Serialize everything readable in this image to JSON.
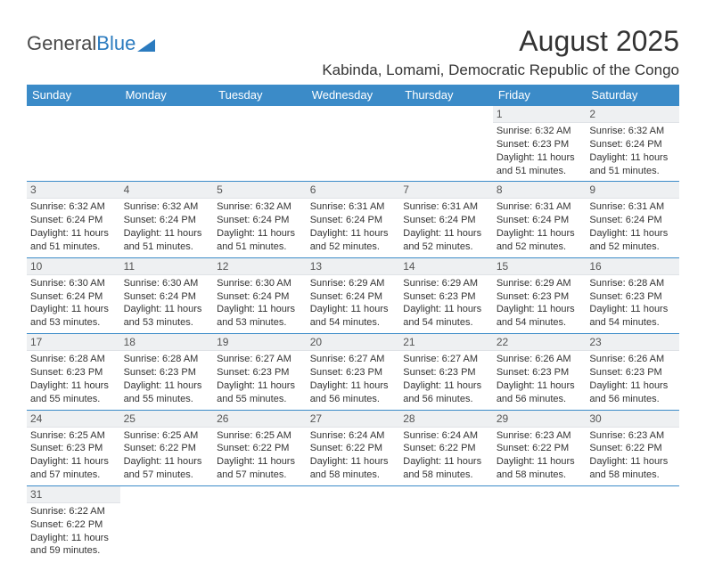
{
  "logo": {
    "part1": "General",
    "part2": "Blue"
  },
  "title": "August 2025",
  "location": "Kabinda, Lomami, Democratic Republic of the Congo",
  "header_bg": "#3b8bc8",
  "weekdays": [
    "Sunday",
    "Monday",
    "Tuesday",
    "Wednesday",
    "Thursday",
    "Friday",
    "Saturday"
  ],
  "rows": [
    [
      null,
      null,
      null,
      null,
      null,
      {
        "n": "1",
        "rise": "Sunrise: 6:32 AM",
        "set": "Sunset: 6:23 PM",
        "d1": "Daylight: 11 hours",
        "d2": "and 51 minutes."
      },
      {
        "n": "2",
        "rise": "Sunrise: 6:32 AM",
        "set": "Sunset: 6:24 PM",
        "d1": "Daylight: 11 hours",
        "d2": "and 51 minutes."
      }
    ],
    [
      {
        "n": "3",
        "rise": "Sunrise: 6:32 AM",
        "set": "Sunset: 6:24 PM",
        "d1": "Daylight: 11 hours",
        "d2": "and 51 minutes."
      },
      {
        "n": "4",
        "rise": "Sunrise: 6:32 AM",
        "set": "Sunset: 6:24 PM",
        "d1": "Daylight: 11 hours",
        "d2": "and 51 minutes."
      },
      {
        "n": "5",
        "rise": "Sunrise: 6:32 AM",
        "set": "Sunset: 6:24 PM",
        "d1": "Daylight: 11 hours",
        "d2": "and 51 minutes."
      },
      {
        "n": "6",
        "rise": "Sunrise: 6:31 AM",
        "set": "Sunset: 6:24 PM",
        "d1": "Daylight: 11 hours",
        "d2": "and 52 minutes."
      },
      {
        "n": "7",
        "rise": "Sunrise: 6:31 AM",
        "set": "Sunset: 6:24 PM",
        "d1": "Daylight: 11 hours",
        "d2": "and 52 minutes."
      },
      {
        "n": "8",
        "rise": "Sunrise: 6:31 AM",
        "set": "Sunset: 6:24 PM",
        "d1": "Daylight: 11 hours",
        "d2": "and 52 minutes."
      },
      {
        "n": "9",
        "rise": "Sunrise: 6:31 AM",
        "set": "Sunset: 6:24 PM",
        "d1": "Daylight: 11 hours",
        "d2": "and 52 minutes."
      }
    ],
    [
      {
        "n": "10",
        "rise": "Sunrise: 6:30 AM",
        "set": "Sunset: 6:24 PM",
        "d1": "Daylight: 11 hours",
        "d2": "and 53 minutes."
      },
      {
        "n": "11",
        "rise": "Sunrise: 6:30 AM",
        "set": "Sunset: 6:24 PM",
        "d1": "Daylight: 11 hours",
        "d2": "and 53 minutes."
      },
      {
        "n": "12",
        "rise": "Sunrise: 6:30 AM",
        "set": "Sunset: 6:24 PM",
        "d1": "Daylight: 11 hours",
        "d2": "and 53 minutes."
      },
      {
        "n": "13",
        "rise": "Sunrise: 6:29 AM",
        "set": "Sunset: 6:24 PM",
        "d1": "Daylight: 11 hours",
        "d2": "and 54 minutes."
      },
      {
        "n": "14",
        "rise": "Sunrise: 6:29 AM",
        "set": "Sunset: 6:23 PM",
        "d1": "Daylight: 11 hours",
        "d2": "and 54 minutes."
      },
      {
        "n": "15",
        "rise": "Sunrise: 6:29 AM",
        "set": "Sunset: 6:23 PM",
        "d1": "Daylight: 11 hours",
        "d2": "and 54 minutes."
      },
      {
        "n": "16",
        "rise": "Sunrise: 6:28 AM",
        "set": "Sunset: 6:23 PM",
        "d1": "Daylight: 11 hours",
        "d2": "and 54 minutes."
      }
    ],
    [
      {
        "n": "17",
        "rise": "Sunrise: 6:28 AM",
        "set": "Sunset: 6:23 PM",
        "d1": "Daylight: 11 hours",
        "d2": "and 55 minutes."
      },
      {
        "n": "18",
        "rise": "Sunrise: 6:28 AM",
        "set": "Sunset: 6:23 PM",
        "d1": "Daylight: 11 hours",
        "d2": "and 55 minutes."
      },
      {
        "n": "19",
        "rise": "Sunrise: 6:27 AM",
        "set": "Sunset: 6:23 PM",
        "d1": "Daylight: 11 hours",
        "d2": "and 55 minutes."
      },
      {
        "n": "20",
        "rise": "Sunrise: 6:27 AM",
        "set": "Sunset: 6:23 PM",
        "d1": "Daylight: 11 hours",
        "d2": "and 56 minutes."
      },
      {
        "n": "21",
        "rise": "Sunrise: 6:27 AM",
        "set": "Sunset: 6:23 PM",
        "d1": "Daylight: 11 hours",
        "d2": "and 56 minutes."
      },
      {
        "n": "22",
        "rise": "Sunrise: 6:26 AM",
        "set": "Sunset: 6:23 PM",
        "d1": "Daylight: 11 hours",
        "d2": "and 56 minutes."
      },
      {
        "n": "23",
        "rise": "Sunrise: 6:26 AM",
        "set": "Sunset: 6:23 PM",
        "d1": "Daylight: 11 hours",
        "d2": "and 56 minutes."
      }
    ],
    [
      {
        "n": "24",
        "rise": "Sunrise: 6:25 AM",
        "set": "Sunset: 6:23 PM",
        "d1": "Daylight: 11 hours",
        "d2": "and 57 minutes."
      },
      {
        "n": "25",
        "rise": "Sunrise: 6:25 AM",
        "set": "Sunset: 6:22 PM",
        "d1": "Daylight: 11 hours",
        "d2": "and 57 minutes."
      },
      {
        "n": "26",
        "rise": "Sunrise: 6:25 AM",
        "set": "Sunset: 6:22 PM",
        "d1": "Daylight: 11 hours",
        "d2": "and 57 minutes."
      },
      {
        "n": "27",
        "rise": "Sunrise: 6:24 AM",
        "set": "Sunset: 6:22 PM",
        "d1": "Daylight: 11 hours",
        "d2": "and 58 minutes."
      },
      {
        "n": "28",
        "rise": "Sunrise: 6:24 AM",
        "set": "Sunset: 6:22 PM",
        "d1": "Daylight: 11 hours",
        "d2": "and 58 minutes."
      },
      {
        "n": "29",
        "rise": "Sunrise: 6:23 AM",
        "set": "Sunset: 6:22 PM",
        "d1": "Daylight: 11 hours",
        "d2": "and 58 minutes."
      },
      {
        "n": "30",
        "rise": "Sunrise: 6:23 AM",
        "set": "Sunset: 6:22 PM",
        "d1": "Daylight: 11 hours",
        "d2": "and 58 minutes."
      }
    ],
    [
      {
        "n": "31",
        "rise": "Sunrise: 6:22 AM",
        "set": "Sunset: 6:22 PM",
        "d1": "Daylight: 11 hours",
        "d2": "and 59 minutes."
      },
      null,
      null,
      null,
      null,
      null,
      null
    ]
  ]
}
